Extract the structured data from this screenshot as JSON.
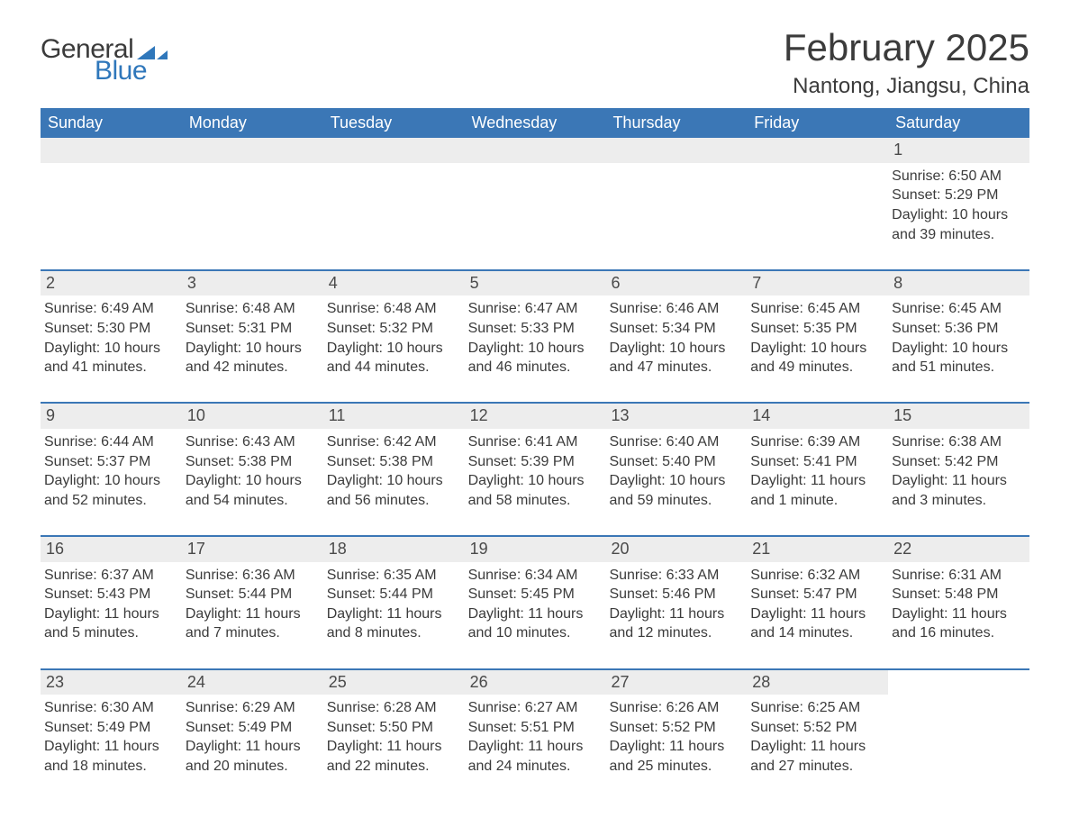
{
  "logo": {
    "text_general": "General",
    "text_blue": "Blue"
  },
  "header": {
    "month_title": "February 2025",
    "location": "Nantong, Jiangsu, China"
  },
  "theme": {
    "header_bg": "#3b77b6",
    "header_text": "#ffffff",
    "daynum_bg": "#ededed",
    "week_border": "#3b77b6",
    "body_text": "#3b3b3b",
    "logo_blue": "#2f77bb"
  },
  "calendar": {
    "days_of_week": [
      "Sunday",
      "Monday",
      "Tuesday",
      "Wednesday",
      "Thursday",
      "Friday",
      "Saturday"
    ],
    "weeks": [
      [
        {
          "day": "",
          "sunrise": "",
          "sunset": "",
          "daylight": ""
        },
        {
          "day": "",
          "sunrise": "",
          "sunset": "",
          "daylight": ""
        },
        {
          "day": "",
          "sunrise": "",
          "sunset": "",
          "daylight": ""
        },
        {
          "day": "",
          "sunrise": "",
          "sunset": "",
          "daylight": ""
        },
        {
          "day": "",
          "sunrise": "",
          "sunset": "",
          "daylight": ""
        },
        {
          "day": "",
          "sunrise": "",
          "sunset": "",
          "daylight": ""
        },
        {
          "day": "1",
          "sunrise": "Sunrise: 6:50 AM",
          "sunset": "Sunset: 5:29 PM",
          "daylight": "Daylight: 10 hours and 39 minutes."
        }
      ],
      [
        {
          "day": "2",
          "sunrise": "Sunrise: 6:49 AM",
          "sunset": "Sunset: 5:30 PM",
          "daylight": "Daylight: 10 hours and 41 minutes."
        },
        {
          "day": "3",
          "sunrise": "Sunrise: 6:48 AM",
          "sunset": "Sunset: 5:31 PM",
          "daylight": "Daylight: 10 hours and 42 minutes."
        },
        {
          "day": "4",
          "sunrise": "Sunrise: 6:48 AM",
          "sunset": "Sunset: 5:32 PM",
          "daylight": "Daylight: 10 hours and 44 minutes."
        },
        {
          "day": "5",
          "sunrise": "Sunrise: 6:47 AM",
          "sunset": "Sunset: 5:33 PM",
          "daylight": "Daylight: 10 hours and 46 minutes."
        },
        {
          "day": "6",
          "sunrise": "Sunrise: 6:46 AM",
          "sunset": "Sunset: 5:34 PM",
          "daylight": "Daylight: 10 hours and 47 minutes."
        },
        {
          "day": "7",
          "sunrise": "Sunrise: 6:45 AM",
          "sunset": "Sunset: 5:35 PM",
          "daylight": "Daylight: 10 hours and 49 minutes."
        },
        {
          "day": "8",
          "sunrise": "Sunrise: 6:45 AM",
          "sunset": "Sunset: 5:36 PM",
          "daylight": "Daylight: 10 hours and 51 minutes."
        }
      ],
      [
        {
          "day": "9",
          "sunrise": "Sunrise: 6:44 AM",
          "sunset": "Sunset: 5:37 PM",
          "daylight": "Daylight: 10 hours and 52 minutes."
        },
        {
          "day": "10",
          "sunrise": "Sunrise: 6:43 AM",
          "sunset": "Sunset: 5:38 PM",
          "daylight": "Daylight: 10 hours and 54 minutes."
        },
        {
          "day": "11",
          "sunrise": "Sunrise: 6:42 AM",
          "sunset": "Sunset: 5:38 PM",
          "daylight": "Daylight: 10 hours and 56 minutes."
        },
        {
          "day": "12",
          "sunrise": "Sunrise: 6:41 AM",
          "sunset": "Sunset: 5:39 PM",
          "daylight": "Daylight: 10 hours and 58 minutes."
        },
        {
          "day": "13",
          "sunrise": "Sunrise: 6:40 AM",
          "sunset": "Sunset: 5:40 PM",
          "daylight": "Daylight: 10 hours and 59 minutes."
        },
        {
          "day": "14",
          "sunrise": "Sunrise: 6:39 AM",
          "sunset": "Sunset: 5:41 PM",
          "daylight": "Daylight: 11 hours and 1 minute."
        },
        {
          "day": "15",
          "sunrise": "Sunrise: 6:38 AM",
          "sunset": "Sunset: 5:42 PM",
          "daylight": "Daylight: 11 hours and 3 minutes."
        }
      ],
      [
        {
          "day": "16",
          "sunrise": "Sunrise: 6:37 AM",
          "sunset": "Sunset: 5:43 PM",
          "daylight": "Daylight: 11 hours and 5 minutes."
        },
        {
          "day": "17",
          "sunrise": "Sunrise: 6:36 AM",
          "sunset": "Sunset: 5:44 PM",
          "daylight": "Daylight: 11 hours and 7 minutes."
        },
        {
          "day": "18",
          "sunrise": "Sunrise: 6:35 AM",
          "sunset": "Sunset: 5:44 PM",
          "daylight": "Daylight: 11 hours and 8 minutes."
        },
        {
          "day": "19",
          "sunrise": "Sunrise: 6:34 AM",
          "sunset": "Sunset: 5:45 PM",
          "daylight": "Daylight: 11 hours and 10 minutes."
        },
        {
          "day": "20",
          "sunrise": "Sunrise: 6:33 AM",
          "sunset": "Sunset: 5:46 PM",
          "daylight": "Daylight: 11 hours and 12 minutes."
        },
        {
          "day": "21",
          "sunrise": "Sunrise: 6:32 AM",
          "sunset": "Sunset: 5:47 PM",
          "daylight": "Daylight: 11 hours and 14 minutes."
        },
        {
          "day": "22",
          "sunrise": "Sunrise: 6:31 AM",
          "sunset": "Sunset: 5:48 PM",
          "daylight": "Daylight: 11 hours and 16 minutes."
        }
      ],
      [
        {
          "day": "23",
          "sunrise": "Sunrise: 6:30 AM",
          "sunset": "Sunset: 5:49 PM",
          "daylight": "Daylight: 11 hours and 18 minutes."
        },
        {
          "day": "24",
          "sunrise": "Sunrise: 6:29 AM",
          "sunset": "Sunset: 5:49 PM",
          "daylight": "Daylight: 11 hours and 20 minutes."
        },
        {
          "day": "25",
          "sunrise": "Sunrise: 6:28 AM",
          "sunset": "Sunset: 5:50 PM",
          "daylight": "Daylight: 11 hours and 22 minutes."
        },
        {
          "day": "26",
          "sunrise": "Sunrise: 6:27 AM",
          "sunset": "Sunset: 5:51 PM",
          "daylight": "Daylight: 11 hours and 24 minutes."
        },
        {
          "day": "27",
          "sunrise": "Sunrise: 6:26 AM",
          "sunset": "Sunset: 5:52 PM",
          "daylight": "Daylight: 11 hours and 25 minutes."
        },
        {
          "day": "28",
          "sunrise": "Sunrise: 6:25 AM",
          "sunset": "Sunset: 5:52 PM",
          "daylight": "Daylight: 11 hours and 27 minutes."
        },
        {
          "day": "",
          "sunrise": "",
          "sunset": "",
          "daylight": ""
        }
      ]
    ]
  }
}
